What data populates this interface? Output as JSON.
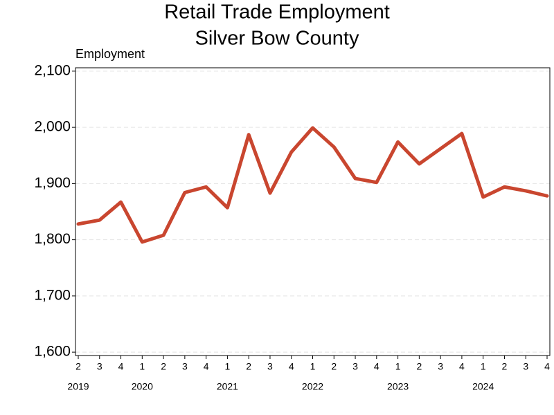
{
  "chart_data": {
    "type": "line",
    "title": "Retail Trade Employment",
    "subtitle": "Silver Bow County",
    "y_label": "Employment",
    "categories": [
      "2",
      "3",
      "4",
      "1",
      "2",
      "3",
      "4",
      "1",
      "2",
      "3",
      "4",
      "1",
      "2",
      "3",
      "4",
      "1",
      "2",
      "3",
      "4",
      "1",
      "2",
      "3",
      "4"
    ],
    "years": [
      "2019",
      null,
      null,
      "2020",
      null,
      null,
      null,
      "2021",
      null,
      null,
      null,
      "2022",
      null,
      null,
      null,
      "2023",
      null,
      null,
      null,
      "2024",
      null,
      null,
      null
    ],
    "series": [
      {
        "name": "Employment",
        "color": "#c9462f",
        "values": [
          1828,
          1835,
          1867,
          1796,
          1808,
          1884,
          1894,
          1857,
          1987,
          1883,
          1956,
          1999,
          1965,
          1909,
          1902,
          1974,
          1935,
          1962,
          1989,
          1876,
          1894,
          1887,
          1878
        ]
      }
    ],
    "ylim": [
      1594,
      2106
    ],
    "yticks": [
      {
        "value": 1600,
        "label": "1,600"
      },
      {
        "value": 1700,
        "label": "1,700"
      },
      {
        "value": 1800,
        "label": "1,800"
      },
      {
        "value": 1900,
        "label": "1,900"
      },
      {
        "value": 2000,
        "label": "2,000"
      },
      {
        "value": 2100,
        "label": "2,100"
      }
    ],
    "grid": true
  }
}
